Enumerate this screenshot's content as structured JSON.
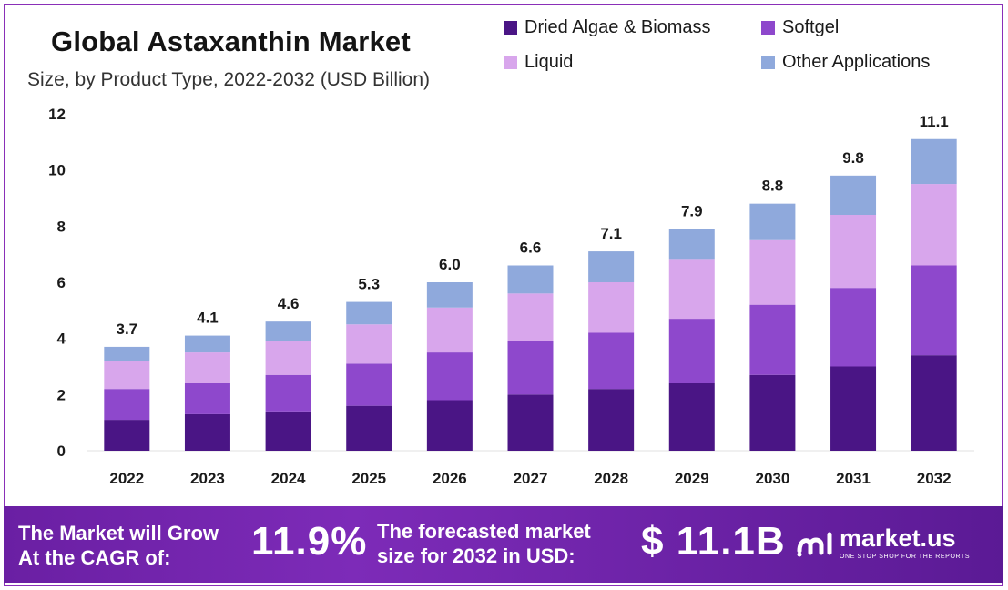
{
  "chart_data": {
    "type": "bar",
    "stacked": true,
    "title": "Global Astaxanthin Market",
    "subtitle": "Size, by Product Type, 2022-2032 (USD Billion)",
    "categories": [
      "2022",
      "2023",
      "2024",
      "2025",
      "2026",
      "2027",
      "2028",
      "2029",
      "2030",
      "2031",
      "2032"
    ],
    "totals": [
      3.7,
      4.1,
      4.6,
      5.3,
      6.0,
      6.6,
      7.1,
      7.9,
      8.8,
      9.8,
      11.1
    ],
    "total_labels": [
      "3.7",
      "4.1",
      "4.6",
      "5.3",
      "6.0",
      "6.6",
      "7.1",
      "7.9",
      "8.8",
      "9.8",
      "11.1"
    ],
    "series": [
      {
        "name": "Dried Algae & Biomass",
        "color": "#4a1585",
        "values": [
          1.1,
          1.3,
          1.4,
          1.6,
          1.8,
          2.0,
          2.2,
          2.4,
          2.7,
          3.0,
          3.4
        ]
      },
      {
        "name": "Softgel",
        "color": "#8e48cc",
        "values": [
          1.1,
          1.1,
          1.3,
          1.5,
          1.7,
          1.9,
          2.0,
          2.3,
          2.5,
          2.8,
          3.2
        ]
      },
      {
        "name": "Liquid",
        "color": "#d8a6ec",
        "values": [
          1.0,
          1.1,
          1.2,
          1.4,
          1.6,
          1.7,
          1.8,
          2.1,
          2.3,
          2.6,
          2.9
        ]
      },
      {
        "name": "Other Applications",
        "color": "#8fa9dc",
        "values": [
          0.5,
          0.6,
          0.7,
          0.8,
          0.9,
          1.0,
          1.1,
          1.1,
          1.3,
          1.4,
          1.6
        ]
      }
    ],
    "ylim": [
      0,
      12
    ],
    "yticks": [
      0,
      2,
      4,
      6,
      8,
      10,
      12
    ],
    "grid": false,
    "legend_position": "top-right"
  },
  "banner": {
    "cagr_text": "The Market will Grow\nAt the CAGR of:",
    "cagr_value": "11.9%",
    "forecast_text": "The forecasted market\nsize for 2032 in USD:",
    "forecast_value": "$ 11.1B",
    "brand_name": "market.us",
    "brand_tagline": "ONE STOP SHOP FOR THE REPORTS"
  }
}
